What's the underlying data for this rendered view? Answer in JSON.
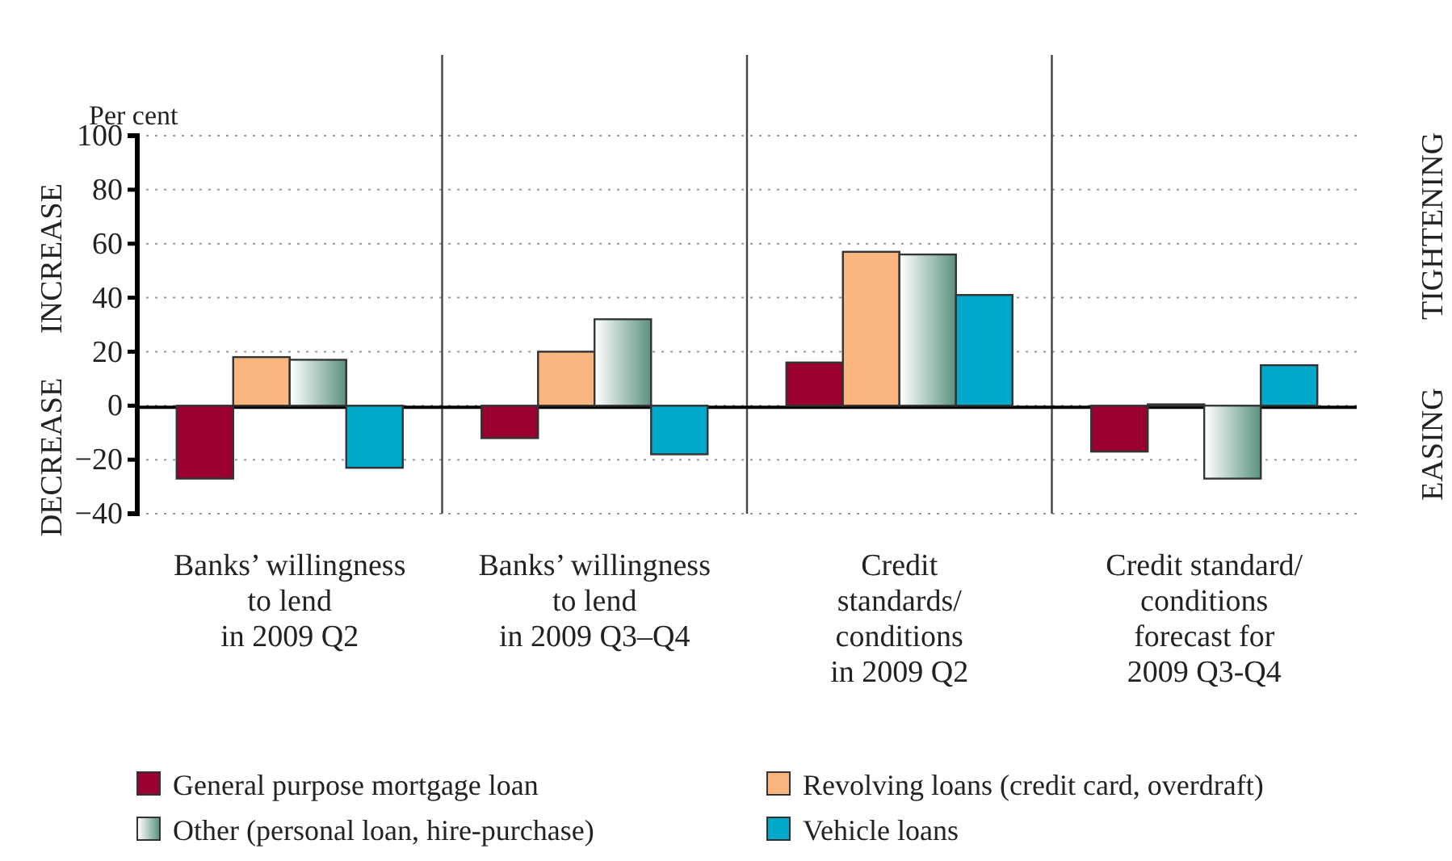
{
  "chart_data": {
    "type": "bar",
    "ylabel": "Per cent",
    "categories": [
      "Banks’ willingness\nto lend\nin 2009 Q2",
      "Banks’ willingness\nto lend\nin 2009 Q3–Q4",
      "Credit\nstandards/\nconditions\nin 2009 Q2",
      "Credit standard/\nconditions\nforecast for\n2009 Q3-Q4"
    ],
    "series": [
      {
        "name": "General purpose mortgage loan",
        "color": "#990030",
        "values": [
          -27,
          -12,
          16,
          -17
        ]
      },
      {
        "name": "Revolving loans (credit card, overdraft)",
        "color": "#fbb57f",
        "values": [
          18,
          20,
          57,
          0.5
        ]
      },
      {
        "name": "Other (personal loan, hire-purchase)",
        "color": "#5e9383",
        "values": [
          17,
          32,
          56,
          -27
        ]
      },
      {
        "name": "Vehicle loans",
        "color": "#00a9c9",
        "values": [
          -23,
          -18,
          41,
          15
        ]
      }
    ],
    "ylim": [
      -40,
      100
    ],
    "yticks": [
      -40,
      -20,
      0,
      20,
      40,
      60,
      80,
      100
    ],
    "grid": "y",
    "legend": "bottom",
    "annotations": [
      "INCREASE",
      "DECREASE",
      "TIGHTENING",
      "EASING"
    ]
  }
}
